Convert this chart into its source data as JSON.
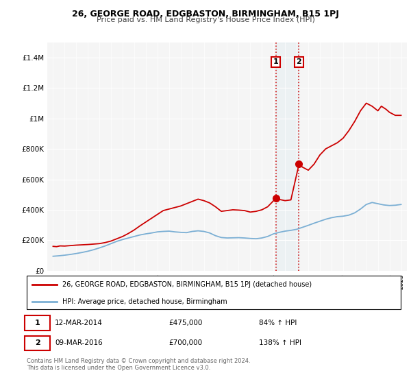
{
  "title": "26, GEORGE ROAD, EDGBASTON, BIRMINGHAM, B15 1PJ",
  "subtitle": "Price paid vs. HM Land Registry's House Price Index (HPI)",
  "background_color": "#ffffff",
  "plot_bg_color": "#f5f5f5",
  "legend_label_red": "26, GEORGE ROAD, EDGBASTON, BIRMINGHAM, B15 1PJ (detached house)",
  "legend_label_blue": "HPI: Average price, detached house, Birmingham",
  "annotation1_date": "12-MAR-2014",
  "annotation1_price": "£475,000",
  "annotation1_hpi": "84% ↑ HPI",
  "annotation2_date": "09-MAR-2016",
  "annotation2_price": "£700,000",
  "annotation2_hpi": "138% ↑ HPI",
  "footnote": "Contains HM Land Registry data © Crown copyright and database right 2024.\nThis data is licensed under the Open Government Licence v3.0.",
  "red_color": "#cc0000",
  "blue_color": "#7bafd4",
  "dashed_color": "#cc0000",
  "ylim": [
    0,
    1500000
  ],
  "yticks": [
    0,
    200000,
    400000,
    600000,
    800000,
    1000000,
    1200000,
    1400000
  ],
  "ytick_labels": [
    "£0",
    "£200K",
    "£400K",
    "£600K",
    "£800K",
    "£1M",
    "£1.2M",
    "£1.4M"
  ],
  "xlim_start": 1994.5,
  "xlim_end": 2025.5,
  "sale1_x": 2014.2,
  "sale1_y": 475000,
  "sale2_x": 2016.2,
  "sale2_y": 700000,
  "red_line_x": [
    1995.0,
    1995.3,
    1995.6,
    1996.0,
    1996.5,
    1997.0,
    1997.5,
    1998.0,
    1998.5,
    1999.0,
    1999.5,
    2000.0,
    2000.5,
    2001.0,
    2001.5,
    2002.0,
    2002.5,
    2003.0,
    2003.5,
    2004.0,
    2004.5,
    2005.0,
    2005.5,
    2006.0,
    2006.5,
    2007.0,
    2007.5,
    2008.0,
    2008.5,
    2009.0,
    2009.5,
    2010.0,
    2010.5,
    2011.0,
    2011.5,
    2012.0,
    2012.5,
    2013.0,
    2013.5,
    2014.2,
    2014.5,
    2015.0,
    2015.5,
    2016.2,
    2016.5,
    2017.0,
    2017.5,
    2018.0,
    2018.5,
    2019.0,
    2019.5,
    2020.0,
    2020.5,
    2021.0,
    2021.5,
    2022.0,
    2022.5,
    2023.0,
    2023.3,
    2023.7,
    2024.0,
    2024.5,
    2025.0
  ],
  "red_line_y": [
    160000,
    158000,
    163000,
    162000,
    165000,
    168000,
    170000,
    172000,
    175000,
    178000,
    185000,
    195000,
    210000,
    225000,
    245000,
    268000,
    295000,
    320000,
    345000,
    370000,
    395000,
    405000,
    415000,
    425000,
    440000,
    455000,
    470000,
    460000,
    445000,
    420000,
    390000,
    395000,
    400000,
    398000,
    395000,
    385000,
    390000,
    400000,
    420000,
    475000,
    468000,
    460000,
    465000,
    700000,
    680000,
    660000,
    700000,
    760000,
    800000,
    820000,
    840000,
    870000,
    920000,
    980000,
    1050000,
    1100000,
    1080000,
    1050000,
    1080000,
    1060000,
    1040000,
    1020000,
    1020000
  ],
  "blue_line_x": [
    1995.0,
    1995.5,
    1996.0,
    1996.5,
    1997.0,
    1997.5,
    1998.0,
    1998.5,
    1999.0,
    1999.5,
    2000.0,
    2000.5,
    2001.0,
    2001.5,
    2002.0,
    2002.5,
    2003.0,
    2003.5,
    2004.0,
    2004.5,
    2005.0,
    2005.5,
    2006.0,
    2006.5,
    2007.0,
    2007.5,
    2008.0,
    2008.5,
    2009.0,
    2009.5,
    2010.0,
    2010.5,
    2011.0,
    2011.5,
    2012.0,
    2012.5,
    2013.0,
    2013.5,
    2014.0,
    2014.5,
    2015.0,
    2015.5,
    2016.0,
    2016.5,
    2017.0,
    2017.5,
    2018.0,
    2018.5,
    2019.0,
    2019.5,
    2020.0,
    2020.5,
    2021.0,
    2021.5,
    2022.0,
    2022.5,
    2023.0,
    2023.5,
    2024.0,
    2024.5,
    2025.0
  ],
  "blue_line_y": [
    95000,
    98000,
    102000,
    107000,
    113000,
    120000,
    128000,
    138000,
    150000,
    163000,
    178000,
    193000,
    205000,
    215000,
    225000,
    235000,
    242000,
    248000,
    255000,
    258000,
    260000,
    255000,
    252000,
    250000,
    258000,
    262000,
    258000,
    248000,
    230000,
    218000,
    215000,
    216000,
    217000,
    215000,
    212000,
    210000,
    215000,
    225000,
    242000,
    252000,
    260000,
    265000,
    272000,
    285000,
    298000,
    312000,
    325000,
    338000,
    348000,
    355000,
    358000,
    365000,
    380000,
    405000,
    435000,
    448000,
    440000,
    432000,
    428000,
    430000,
    435000
  ]
}
